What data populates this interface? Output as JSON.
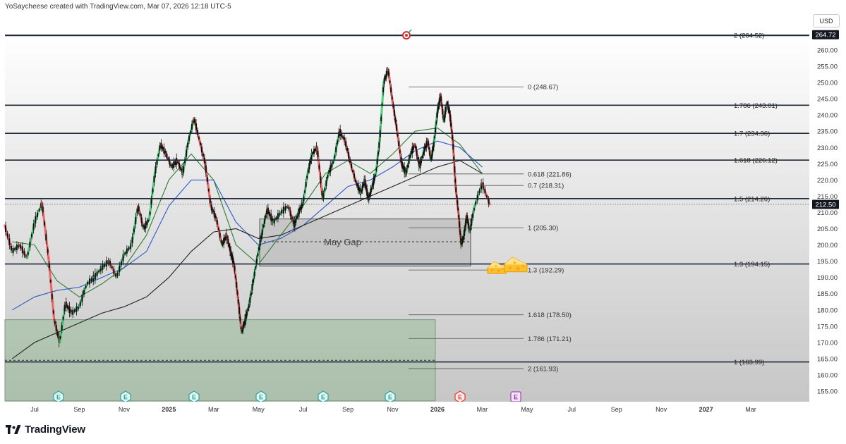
{
  "header": {
    "text": "YoSaycheese created with TradingView.com, Mar 07, 2026 12:18 UTC-5"
  },
  "currency": "USD",
  "footer": {
    "brand": "TradingView",
    "logo_icon": "tradingview-logo-icon"
  },
  "chart_data": {
    "type": "line",
    "y_range": [
      151,
      268
    ],
    "y_ticks": [
      155,
      160,
      165,
      170,
      175,
      180,
      185,
      190,
      195,
      200,
      205,
      210,
      215,
      220,
      225,
      230,
      235,
      240,
      245,
      250,
      255,
      260
    ],
    "x_ticks": [
      "Jul",
      "Sep",
      "Nov",
      "2025",
      "Mar",
      "May",
      "Jul",
      "Sep",
      "Nov",
      "2026",
      "Mar",
      "May",
      "Jul",
      "Sep",
      "Nov",
      "2027",
      "Mar"
    ],
    "x_ticks_bold": [
      "2025",
      "2026",
      "2027"
    ],
    "price_badges": [
      {
        "value": 264.72,
        "label": "264.72"
      },
      {
        "value": 212.5,
        "label": "212.50"
      }
    ],
    "horizontal_levels": [
      {
        "value": 264.52,
        "label": "2 (264.52)"
      },
      {
        "value": 243.01,
        "label": "1.786 (243.01)"
      },
      {
        "value": 234.36,
        "label": "1.7 (234.36)"
      },
      {
        "value": 226.12,
        "label": "1.618 (226.12)"
      },
      {
        "value": 214.26,
        "label": "1.5 (214.26)"
      },
      {
        "value": 194.15,
        "label": "1.3 (194.15)"
      },
      {
        "value": 163.99,
        "label": "1 (163.99)"
      }
    ],
    "short_levels": [
      {
        "value": 248.67,
        "label": "0 (248.67)"
      },
      {
        "value": 221.86,
        "label": "0.618 (221.86)"
      },
      {
        "value": 218.31,
        "label": "0.7 (218.31)"
      },
      {
        "value": 205.3,
        "label": "1 (205.30)"
      },
      {
        "value": 192.29,
        "label": "1.3 (192.29)"
      },
      {
        "value": 178.5,
        "label": "1.618 (178.50)"
      },
      {
        "value": 171.21,
        "label": "1.786 (171.21)"
      },
      {
        "value": 161.93,
        "label": "2 (161.93)"
      }
    ],
    "zones": [
      {
        "label": "May Gap",
        "top": 208,
        "bottom": 193.5,
        "mid": 201,
        "color": "#a6a6a6"
      },
      {
        "label": "",
        "top": 177,
        "bottom": 152,
        "mid": 164.5,
        "color": "#8fb88f"
      }
    ],
    "earnings_markers": [
      {
        "label": "E",
        "type": "past"
      },
      {
        "label": "E",
        "type": "past"
      },
      {
        "label": "E",
        "type": "past"
      },
      {
        "label": "E",
        "type": "past"
      },
      {
        "label": "E",
        "type": "past"
      },
      {
        "label": "E",
        "type": "past"
      },
      {
        "label": "E",
        "type": "upcoming"
      },
      {
        "label": "E",
        "type": "future"
      }
    ],
    "annotation_icons": [
      "cheese-icon",
      "cheese-icon",
      "target-icon"
    ],
    "price_path": [
      {
        "date": "2024-06",
        "price": 206
      },
      {
        "date": "2024-06",
        "price": 198
      },
      {
        "date": "2024-06",
        "price": 200
      },
      {
        "date": "2024-07",
        "price": 196
      },
      {
        "date": "2024-07",
        "price": 207
      },
      {
        "date": "2024-07",
        "price": 213
      },
      {
        "date": "2024-08",
        "price": 196
      },
      {
        "date": "2024-08",
        "price": 177
      },
      {
        "date": "2024-08",
        "price": 170
      },
      {
        "date": "2024-08",
        "price": 182
      },
      {
        "date": "2024-09",
        "price": 179
      },
      {
        "date": "2024-09",
        "price": 181
      },
      {
        "date": "2024-09",
        "price": 188
      },
      {
        "date": "2024-10",
        "price": 190
      },
      {
        "date": "2024-10",
        "price": 193
      },
      {
        "date": "2024-10",
        "price": 195
      },
      {
        "date": "2024-11",
        "price": 190
      },
      {
        "date": "2024-11",
        "price": 197
      },
      {
        "date": "2024-11",
        "price": 200
      },
      {
        "date": "2024-12",
        "price": 212
      },
      {
        "date": "2024-12",
        "price": 205
      },
      {
        "date": "2024-12",
        "price": 208
      },
      {
        "date": "2024-12",
        "price": 222
      },
      {
        "date": "2025-01",
        "price": 231
      },
      {
        "date": "2025-01",
        "price": 228
      },
      {
        "date": "2025-01",
        "price": 224
      },
      {
        "date": "2025-01",
        "price": 226
      },
      {
        "date": "2025-02",
        "price": 222
      },
      {
        "date": "2025-02",
        "price": 232
      },
      {
        "date": "2025-02",
        "price": 239
      },
      {
        "date": "2025-02",
        "price": 232
      },
      {
        "date": "2025-03",
        "price": 225
      },
      {
        "date": "2025-03",
        "price": 212
      },
      {
        "date": "2025-03",
        "price": 208
      },
      {
        "date": "2025-03",
        "price": 200
      },
      {
        "date": "2025-04",
        "price": 203
      },
      {
        "date": "2025-04",
        "price": 198
      },
      {
        "date": "2025-04",
        "price": 194
      },
      {
        "date": "2025-04",
        "price": 184
      },
      {
        "date": "2025-04",
        "price": 173
      },
      {
        "date": "2025-04",
        "price": 177
      },
      {
        "date": "2025-05",
        "price": 182
      },
      {
        "date": "2025-05",
        "price": 190
      },
      {
        "date": "2025-05",
        "price": 198
      },
      {
        "date": "2025-05",
        "price": 205
      },
      {
        "date": "2025-05",
        "price": 211
      },
      {
        "date": "2025-06",
        "price": 207
      },
      {
        "date": "2025-06",
        "price": 210
      },
      {
        "date": "2025-06",
        "price": 212
      },
      {
        "date": "2025-07",
        "price": 206
      },
      {
        "date": "2025-07",
        "price": 210
      },
      {
        "date": "2025-07",
        "price": 213
      },
      {
        "date": "2025-07",
        "price": 222
      },
      {
        "date": "2025-07",
        "price": 228
      },
      {
        "date": "2025-08",
        "price": 230
      },
      {
        "date": "2025-08",
        "price": 214
      },
      {
        "date": "2025-08",
        "price": 222
      },
      {
        "date": "2025-08",
        "price": 226
      },
      {
        "date": "2025-09",
        "price": 235
      },
      {
        "date": "2025-09",
        "price": 232
      },
      {
        "date": "2025-09",
        "price": 225
      },
      {
        "date": "2025-09",
        "price": 219
      },
      {
        "date": "2025-10",
        "price": 216
      },
      {
        "date": "2025-10",
        "price": 220
      },
      {
        "date": "2025-10",
        "price": 214
      },
      {
        "date": "2025-10",
        "price": 218
      },
      {
        "date": "2025-10",
        "price": 222
      },
      {
        "date": "2025-10",
        "price": 232
      },
      {
        "date": "2025-11",
        "price": 250
      },
      {
        "date": "2025-11",
        "price": 254
      },
      {
        "date": "2025-11",
        "price": 244
      },
      {
        "date": "2025-11",
        "price": 235
      },
      {
        "date": "2025-11",
        "price": 225
      },
      {
        "date": "2025-12",
        "price": 222
      },
      {
        "date": "2025-12",
        "price": 228
      },
      {
        "date": "2025-12",
        "price": 231
      },
      {
        "date": "2025-12",
        "price": 224
      },
      {
        "date": "2025-12",
        "price": 229
      },
      {
        "date": "2026-01",
        "price": 232
      },
      {
        "date": "2026-01",
        "price": 226
      },
      {
        "date": "2026-01",
        "price": 232
      },
      {
        "date": "2026-01",
        "price": 241
      },
      {
        "date": "2026-01",
        "price": 246
      },
      {
        "date": "2026-01",
        "price": 238
      },
      {
        "date": "2026-01",
        "price": 244
      },
      {
        "date": "2026-02",
        "price": 240
      },
      {
        "date": "2026-02",
        "price": 232
      },
      {
        "date": "2026-02",
        "price": 218
      },
      {
        "date": "2026-02",
        "price": 210
      },
      {
        "date": "2026-02",
        "price": 200
      },
      {
        "date": "2026-02",
        "price": 203
      },
      {
        "date": "2026-02",
        "price": 209
      },
      {
        "date": "2026-02",
        "price": 204
      },
      {
        "date": "2026-03",
        "price": 212
      },
      {
        "date": "2026-03",
        "price": 219
      },
      {
        "date": "2026-03",
        "price": 212.5
      }
    ],
    "moving_averages": [
      {
        "color": "#2f7d32",
        "points": [
          {
            "date": "2024-06",
            "price": 201
          },
          {
            "date": "2024-07",
            "price": 200
          },
          {
            "date": "2024-08",
            "price": 189
          },
          {
            "date": "2024-09",
            "price": 184
          },
          {
            "date": "2024-10",
            "price": 188
          },
          {
            "date": "2024-11",
            "price": 193
          },
          {
            "date": "2024-12",
            "price": 203
          },
          {
            "date": "2025-01",
            "price": 220
          },
          {
            "date": "2025-02",
            "price": 228
          },
          {
            "date": "2025-03",
            "price": 220
          },
          {
            "date": "2025-04",
            "price": 200
          },
          {
            "date": "2025-05",
            "price": 194
          },
          {
            "date": "2025-06",
            "price": 203
          },
          {
            "date": "2025-07",
            "price": 212
          },
          {
            "date": "2025-08",
            "price": 222
          },
          {
            "date": "2025-09",
            "price": 226
          },
          {
            "date": "2025-10",
            "price": 222
          },
          {
            "date": "2025-11",
            "price": 228
          },
          {
            "date": "2025-12",
            "price": 235
          },
          {
            "date": "2026-01",
            "price": 236
          },
          {
            "date": "2026-02",
            "price": 231
          },
          {
            "date": "2026-03",
            "price": 222
          }
        ]
      },
      {
        "color": "#2c59c9",
        "points": [
          {
            "date": "2024-06",
            "price": 180
          },
          {
            "date": "2024-07",
            "price": 184
          },
          {
            "date": "2024-08",
            "price": 186
          },
          {
            "date": "2024-09",
            "price": 187
          },
          {
            "date": "2024-10",
            "price": 190
          },
          {
            "date": "2024-11",
            "price": 193
          },
          {
            "date": "2024-12",
            "price": 198
          },
          {
            "date": "2025-01",
            "price": 212
          },
          {
            "date": "2025-02",
            "price": 220
          },
          {
            "date": "2025-03",
            "price": 220
          },
          {
            "date": "2025-04",
            "price": 207
          },
          {
            "date": "2025-05",
            "price": 200
          },
          {
            "date": "2025-06",
            "price": 202
          },
          {
            "date": "2025-07",
            "price": 206
          },
          {
            "date": "2025-08",
            "price": 212
          },
          {
            "date": "2025-09",
            "price": 218
          },
          {
            "date": "2025-10",
            "price": 220
          },
          {
            "date": "2025-11",
            "price": 224
          },
          {
            "date": "2025-12",
            "price": 229
          },
          {
            "date": "2026-01",
            "price": 232
          },
          {
            "date": "2026-02",
            "price": 230
          },
          {
            "date": "2026-03",
            "price": 224
          }
        ]
      },
      {
        "color": "#222222",
        "points": [
          {
            "date": "2024-06",
            "price": 165
          },
          {
            "date": "2024-07",
            "price": 170
          },
          {
            "date": "2024-08",
            "price": 173
          },
          {
            "date": "2024-09",
            "price": 176
          },
          {
            "date": "2024-10",
            "price": 179
          },
          {
            "date": "2024-11",
            "price": 181
          },
          {
            "date": "2024-12",
            "price": 184
          },
          {
            "date": "2025-01",
            "price": 190
          },
          {
            "date": "2025-02",
            "price": 198
          },
          {
            "date": "2025-03",
            "price": 204
          },
          {
            "date": "2025-04",
            "price": 205
          },
          {
            "date": "2025-05",
            "price": 202
          },
          {
            "date": "2025-06",
            "price": 203
          },
          {
            "date": "2025-07",
            "price": 206
          },
          {
            "date": "2025-08",
            "price": 209
          },
          {
            "date": "2025-09",
            "price": 212
          },
          {
            "date": "2025-10",
            "price": 215
          },
          {
            "date": "2025-11",
            "price": 218
          },
          {
            "date": "2025-12",
            "price": 221
          },
          {
            "date": "2026-01",
            "price": 224
          },
          {
            "date": "2026-02",
            "price": 226
          },
          {
            "date": "2026-03",
            "price": 222
          }
        ]
      }
    ],
    "colors": {
      "up": "#22c55e",
      "down": "#ef4444",
      "level_line": "#1e293b",
      "background_top": "#ffffff",
      "background_bottom": "#c8c8c8"
    }
  }
}
